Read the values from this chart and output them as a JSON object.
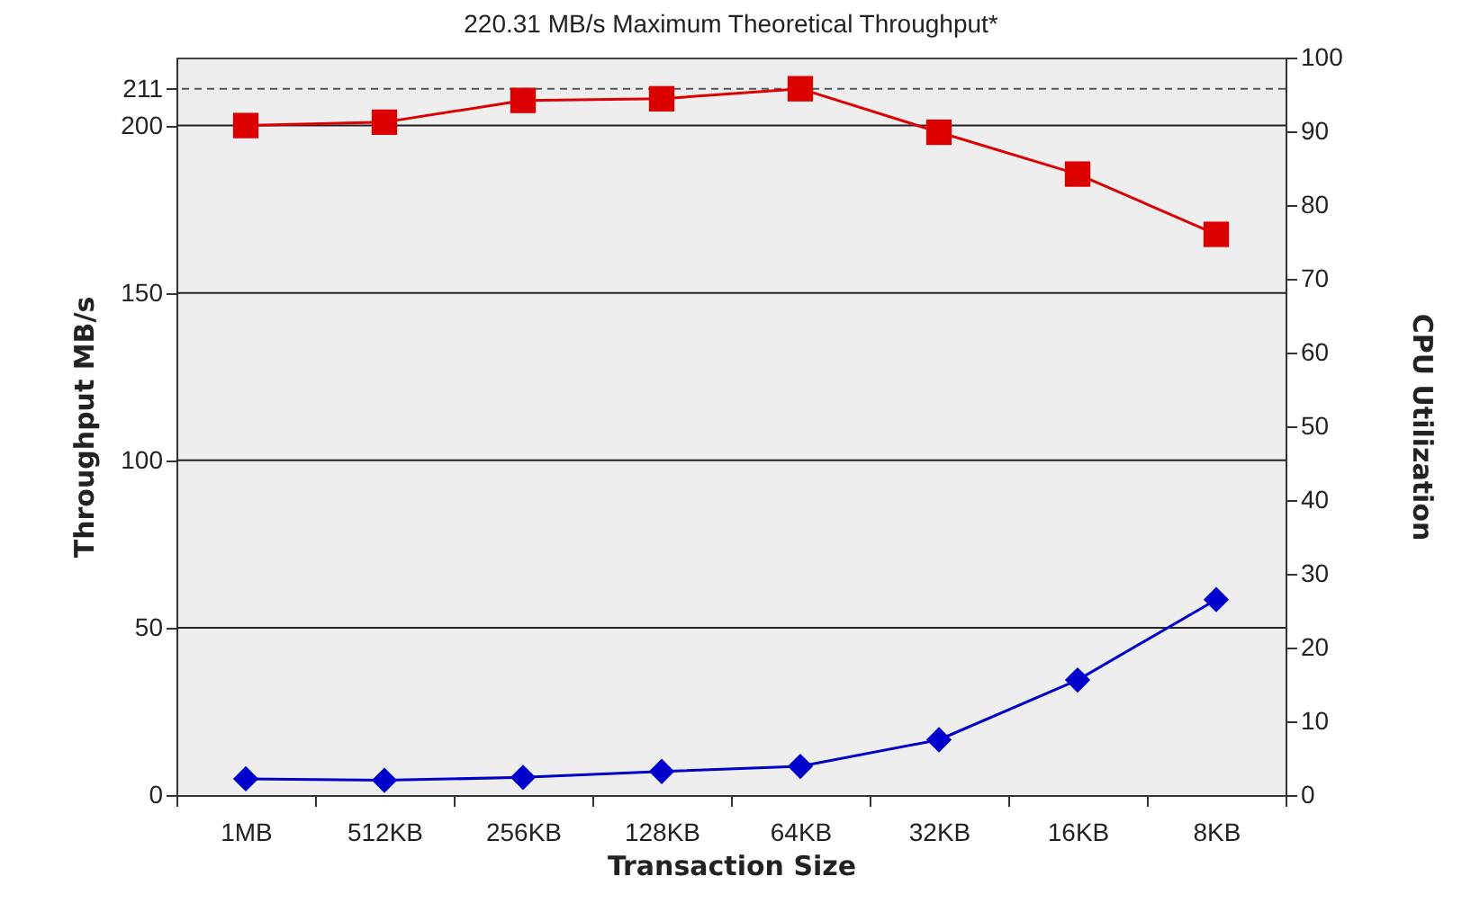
{
  "chart_data": {
    "type": "line",
    "title": "220.31 MB/s Maximum Theoretical Throughput*",
    "xlabel": "Transaction Size",
    "ylabel": "Throughput MB/s",
    "y2label": "CPU Utilization",
    "categories": [
      "1MB",
      "512KB",
      "256KB",
      "128KB",
      "64KB",
      "32KB",
      "16KB",
      "8KB"
    ],
    "series": [
      {
        "color": "#dd0000",
        "marker": "square",
        "values": [
          200,
          201,
          207.5,
          208,
          211,
          198,
          185.5,
          167.5
        ]
      },
      {
        "color": "#0000cc",
        "marker": "diamond",
        "axis": "y2",
        "values": [
          2.2,
          2.0,
          2.4,
          3.2,
          3.9,
          7.5,
          15.6,
          26.5
        ]
      }
    ],
    "ylim": [
      0,
      220.31
    ],
    "yticks": [
      0,
      50,
      100,
      150,
      200,
      211
    ],
    "y2lim": [
      0,
      100
    ],
    "y2ticks": [
      0,
      10,
      20,
      30,
      40,
      50,
      60,
      70,
      80,
      90,
      100
    ],
    "ref_lines": [
      {
        "axis": "y",
        "value": 211,
        "color": "#555555",
        "line_style": "dashed"
      }
    ],
    "grid": "y",
    "line_style": "solid"
  }
}
